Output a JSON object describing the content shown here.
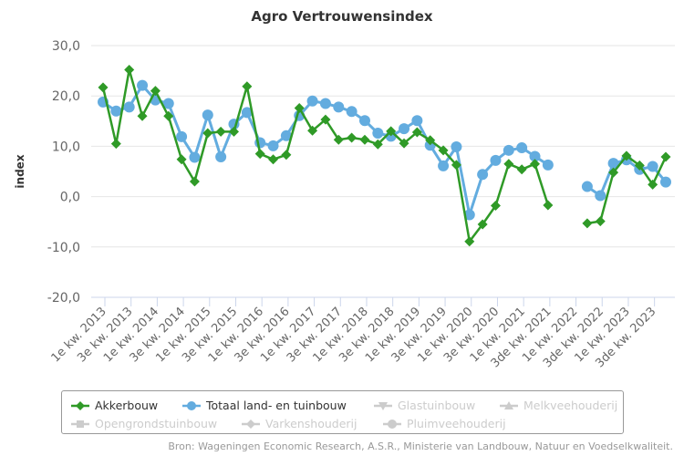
{
  "chart_data": {
    "type": "line",
    "title": "Agro Vertrouwensindex",
    "ylabel": "index",
    "xlabel": "",
    "ylim": [
      -20,
      30
    ],
    "yticks": [
      30,
      20,
      10,
      0,
      -10,
      -20
    ],
    "ytick_labels": [
      "30,0",
      "20,0",
      "10,0",
      "0,0",
      "-10,0",
      "-20,0"
    ],
    "grid": true,
    "legend_placement": "bottom",
    "tick_labels": [
      "1e kw. 2013",
      "3e kw. 2013",
      "1e kw. 2014",
      "3e kw. 2014",
      "1e kw. 2015",
      "3e kw. 2015",
      "1e kw. 2016",
      "3e kw. 2016",
      "1e kw. 2017",
      "3e kw. 2017",
      "1e kw. 2018",
      "3e kw. 2018",
      "1e kw. 2019",
      "3e kw. 2019",
      "1e kw. 2020",
      "3e kw. 2020",
      "1e kw. 2021",
      "3de kw. 2021",
      "1e kw. 2022",
      "3de kw. 2022",
      "1e kw. 2023",
      "3de kw. 2023"
    ],
    "n_points": 44,
    "series": [
      {
        "name": "Akkerbouw",
        "color": "#2f9a27",
        "marker": "diamond",
        "values": [
          21.7,
          10.5,
          25.2,
          16.0,
          21.0,
          16.0,
          7.4,
          3.0,
          12.6,
          12.9,
          12.9,
          21.9,
          8.5,
          7.4,
          8.3,
          17.6,
          13.1,
          15.3,
          11.3,
          11.7,
          11.3,
          10.4,
          13.0,
          10.6,
          12.8,
          11.2,
          9.2,
          6.3,
          -8.9,
          -5.5,
          -1.8,
          6.5,
          5.4,
          6.5,
          -1.7,
          null,
          null,
          -5.3,
          -4.9,
          4.8,
          8.1,
          6.2,
          2.4,
          7.9
        ]
      },
      {
        "name": "Totaal land- en tuinbouw",
        "color": "#63acdf",
        "marker": "circle",
        "values": [
          18.8,
          17.0,
          17.8,
          22.1,
          19.2,
          18.5,
          11.9,
          7.8,
          16.2,
          7.9,
          14.4,
          16.7,
          10.7,
          10.1,
          12.1,
          16.1,
          19.0,
          18.5,
          17.8,
          16.9,
          15.1,
          12.6,
          12.0,
          13.5,
          15.1,
          10.2,
          6.1,
          9.9,
          -3.6,
          4.4,
          7.2,
          9.2,
          9.7,
          8.0,
          6.3,
          null,
          null,
          2.0,
          0.2,
          6.6,
          7.3,
          5.4,
          6.0,
          2.9
        ]
      }
    ],
    "legend": [
      {
        "name": "Akkerbouw",
        "active": true,
        "marker": "diamond",
        "color": "#2f9a27"
      },
      {
        "name": "Totaal land- en tuinbouw",
        "active": true,
        "marker": "circle",
        "color": "#63acdf"
      },
      {
        "name": "Glastuinbouw",
        "active": false,
        "marker": "triangle-down",
        "color": "#cccccc"
      },
      {
        "name": "Melkveehouderij",
        "active": false,
        "marker": "triangle",
        "color": "#cccccc"
      },
      {
        "name": "Opengrondstuinbouw",
        "active": false,
        "marker": "square",
        "color": "#cccccc"
      },
      {
        "name": "Varkenshouderij",
        "active": false,
        "marker": "diamond",
        "color": "#cccccc"
      },
      {
        "name": "Pluimveehouderij",
        "active": false,
        "marker": "circle",
        "color": "#cccccc"
      }
    ]
  },
  "source": "Bron: Wageningen Economic Research, A.S.R., Ministerie van Landbouw, Natuur en Voedselkwaliteit."
}
